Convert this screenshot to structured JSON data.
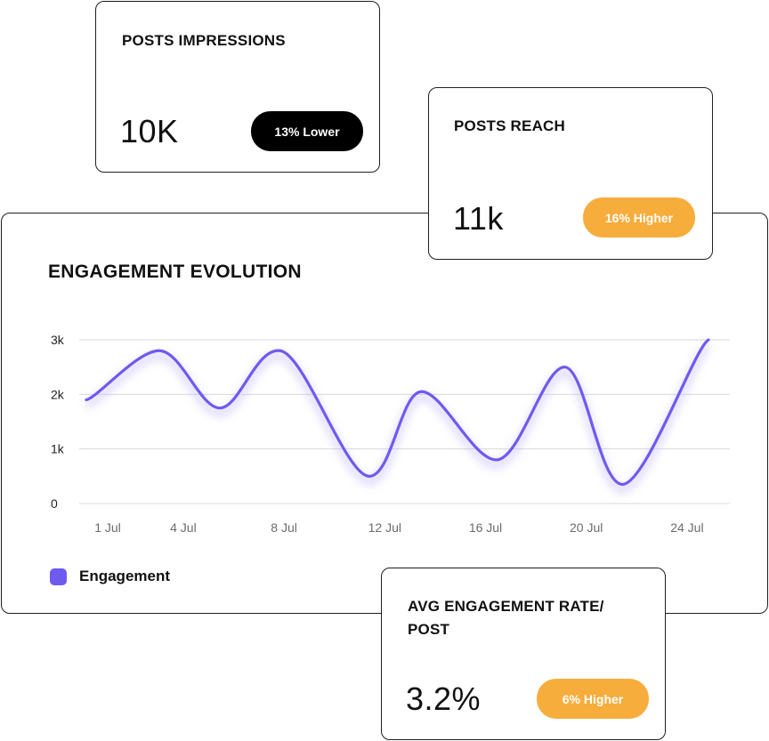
{
  "cards": {
    "impressions": {
      "title": "POSTS IMPRESSIONS",
      "value": "10K",
      "badge": "13% Lower"
    },
    "reach": {
      "title": "POSTS REACH",
      "value": "11k",
      "badge": "16% Higher"
    },
    "engagement_rate": {
      "title": "AVG ENGAGEMENT RATE/ POST",
      "value": "3.2%",
      "badge": "6% Higher"
    }
  },
  "colors": {
    "line": "#6f5af0",
    "badge_orange": "#f7ad3c",
    "badge_dark": "#000000"
  },
  "chart_data": {
    "type": "line",
    "title": "ENGAGEMENT EVOLUTION",
    "xlabel": "",
    "ylabel": "",
    "x_ticks": [
      {
        "day": 1,
        "label": "1 Jul"
      },
      {
        "day": 4,
        "label": "4 Jul"
      },
      {
        "day": 8,
        "label": "8 Jul"
      },
      {
        "day": 12,
        "label": "12 Jul"
      },
      {
        "day": 16,
        "label": "16 Jul"
      },
      {
        "day": 20,
        "label": "20 Jul"
      },
      {
        "day": 24,
        "label": "24 Jul"
      }
    ],
    "y_ticks": [
      {
        "value": 0,
        "label": "0"
      },
      {
        "value": 1000,
        "label": "1k"
      },
      {
        "value": 2000,
        "label": "2k"
      },
      {
        "value": 3000,
        "label": "3k"
      }
    ],
    "ylim": [
      0,
      3000
    ],
    "xlim": [
      1,
      26
    ],
    "grid": true,
    "legend": "bottom-left",
    "series": [
      {
        "name": "Engagement",
        "points": [
          {
            "day": 1,
            "value": 1900
          },
          {
            "day": 3.9,
            "value": 2800
          },
          {
            "day": 6.3,
            "value": 1750
          },
          {
            "day": 8.7,
            "value": 2800
          },
          {
            "day": 12.2,
            "value": 500
          },
          {
            "day": 14.3,
            "value": 2050
          },
          {
            "day": 17.3,
            "value": 800
          },
          {
            "day": 20.0,
            "value": 2500
          },
          {
            "day": 22.3,
            "value": 350
          },
          {
            "day": 25.7,
            "value": 3000
          }
        ]
      }
    ]
  }
}
